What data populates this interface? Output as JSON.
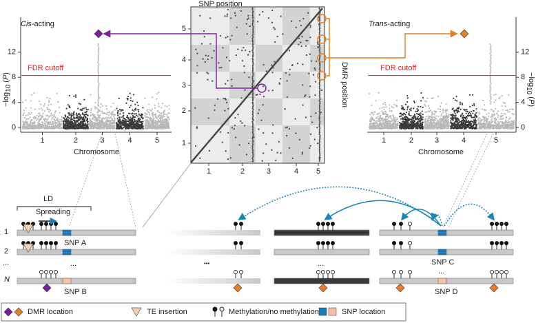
{
  "cis_plot": {
    "title": {
      "italic": "Cis",
      "rest": "-acting"
    },
    "fdr_label": "FDR cutoff",
    "x_label": "Chromosome",
    "y_label": {
      "main": "−log",
      "sub": "10",
      "paren_open": " (",
      "italic": "P",
      "paren_close": ")"
    },
    "yticks": [
      "0",
      "4",
      "8",
      "12"
    ],
    "xticks": [
      "1",
      "2",
      "3",
      "4",
      "5"
    ]
  },
  "trans_plot": {
    "title": {
      "italic": "Trans",
      "rest": "-acting"
    },
    "fdr_label": "FDR cutoff",
    "x_label": "Chromosome",
    "y_label": {
      "main": "−log",
      "sub": "10",
      "paren_open": " (",
      "italic": "P",
      "paren_close": ")"
    },
    "yticks": [
      "0",
      "4",
      "8",
      "12"
    ],
    "xticks": [
      "1",
      "2",
      "3",
      "4",
      "5"
    ]
  },
  "center_plot": {
    "x_label": "SNP position",
    "y_label": "DMR position",
    "xticks": [
      "1",
      "2",
      "3",
      "4",
      "5"
    ],
    "yticks": [
      "1",
      "2",
      "3",
      "4",
      "5"
    ]
  },
  "schematic": {
    "ld": "LD",
    "spreading": "Spreading",
    "rows": [
      "1",
      "2",
      "...",
      "N"
    ],
    "snp_a": "SNP A",
    "snp_b": "SNP B",
    "snp_c": "SNP C",
    "snp_d": "SNP D",
    "ellipsis_left": "...",
    "ellipsis_mid": "...",
    "ellipsis_right": "...",
    "ellipsis_fade": "•••"
  },
  "legend": [
    "DMR location",
    "TE insertion",
    "Methylation/no methylation",
    "SNP location"
  ]
}
